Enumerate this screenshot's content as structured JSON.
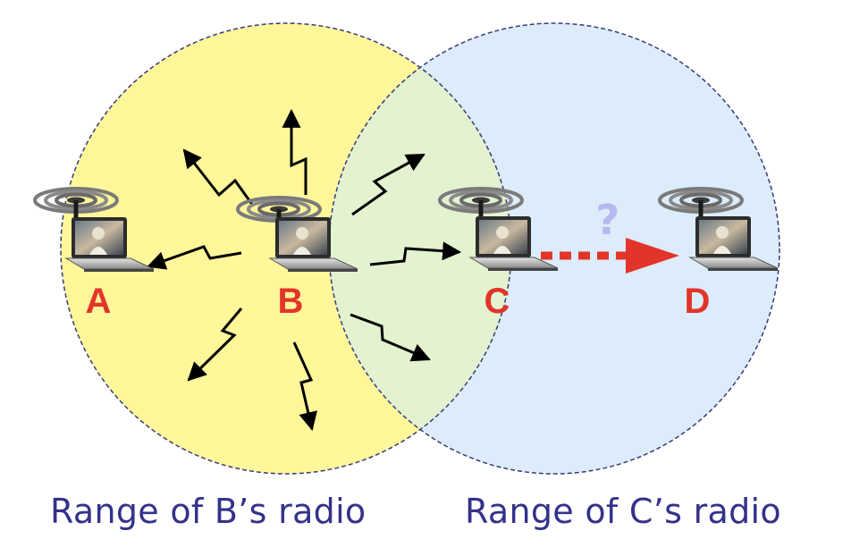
{
  "colors": {
    "b_range_fill": "#fff79a",
    "c_range_fill": "#dcecfa",
    "overlap_fill": "#e3f2cf",
    "range_border": "#3a3a7a",
    "label": "#e3342a",
    "caption": "#33338a",
    "hidden_arrow": "#e3342a",
    "question_mark": "#b8b8f0",
    "signal": "#000000"
  },
  "nodes": [
    {
      "id": "A",
      "label": "A"
    },
    {
      "id": "B",
      "label": "B"
    },
    {
      "id": "C",
      "label": "C"
    },
    {
      "id": "D",
      "label": "D"
    }
  ],
  "annotation": {
    "question_mark": "?"
  },
  "captions": {
    "b_range": "Range of B’s radio",
    "c_range": "Range of C’s radio"
  },
  "icons": {
    "laptop": "laptop-icon",
    "antenna": "antenna-waves-icon",
    "signal": "lightning-arrow-icon"
  }
}
